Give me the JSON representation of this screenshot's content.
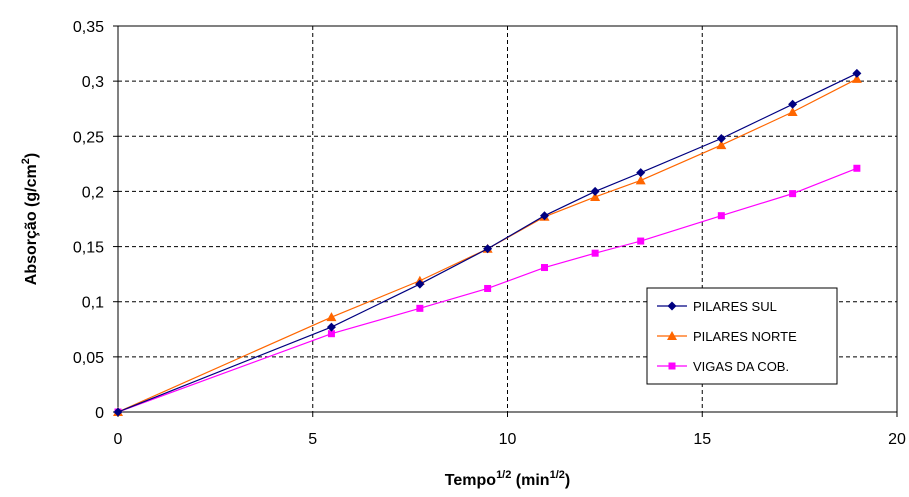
{
  "chart_data": {
    "type": "line",
    "xlabel": {
      "main": "Tempo",
      "sup1": "1/2",
      "mid": " (min",
      "sup2": "1/2",
      "end": ")"
    },
    "ylabel": {
      "main": "Absorção (g/cm",
      "sup": "2",
      "end": ")"
    },
    "xlim": [
      0,
      20
    ],
    "ylim": [
      0,
      0.35
    ],
    "xticks": [
      0,
      5,
      10,
      15,
      20
    ],
    "xtick_labels": [
      "0",
      "5",
      "10",
      "15",
      "20"
    ],
    "yticks": [
      0,
      0.05,
      0.1,
      0.15,
      0.2,
      0.25,
      0.3,
      0.35
    ],
    "ytick_labels": [
      "0",
      "0,05",
      "0,1",
      "0,15",
      "0,2",
      "0,25",
      "0,3",
      "0,35"
    ],
    "grid": true,
    "legend_position": "bottom-right",
    "series": [
      {
        "name": "PILARES SUL",
        "color": "#000080",
        "marker": "diamond",
        "x": [
          0,
          5.48,
          7.75,
          9.49,
          10.95,
          12.25,
          13.42,
          15.49,
          17.32,
          18.97
        ],
        "y": [
          0,
          0.077,
          0.116,
          0.148,
          0.178,
          0.2,
          0.217,
          0.248,
          0.279,
          0.307
        ]
      },
      {
        "name": "PILARES NORTE",
        "color": "#ff6600",
        "marker": "triangle",
        "x": [
          0,
          5.48,
          7.75,
          9.49,
          10.95,
          12.25,
          13.42,
          15.49,
          17.32,
          18.97
        ],
        "y": [
          0,
          0.086,
          0.119,
          0.148,
          0.177,
          0.195,
          0.21,
          0.242,
          0.272,
          0.302
        ]
      },
      {
        "name": "VIGAS DA COB.",
        "color": "#ff00ff",
        "marker": "square",
        "x": [
          0,
          5.48,
          7.75,
          9.49,
          10.95,
          12.25,
          13.42,
          15.49,
          17.32,
          18.97
        ],
        "y": [
          0,
          0.071,
          0.094,
          0.112,
          0.131,
          0.144,
          0.155,
          0.178,
          0.198,
          0.221
        ]
      }
    ]
  }
}
